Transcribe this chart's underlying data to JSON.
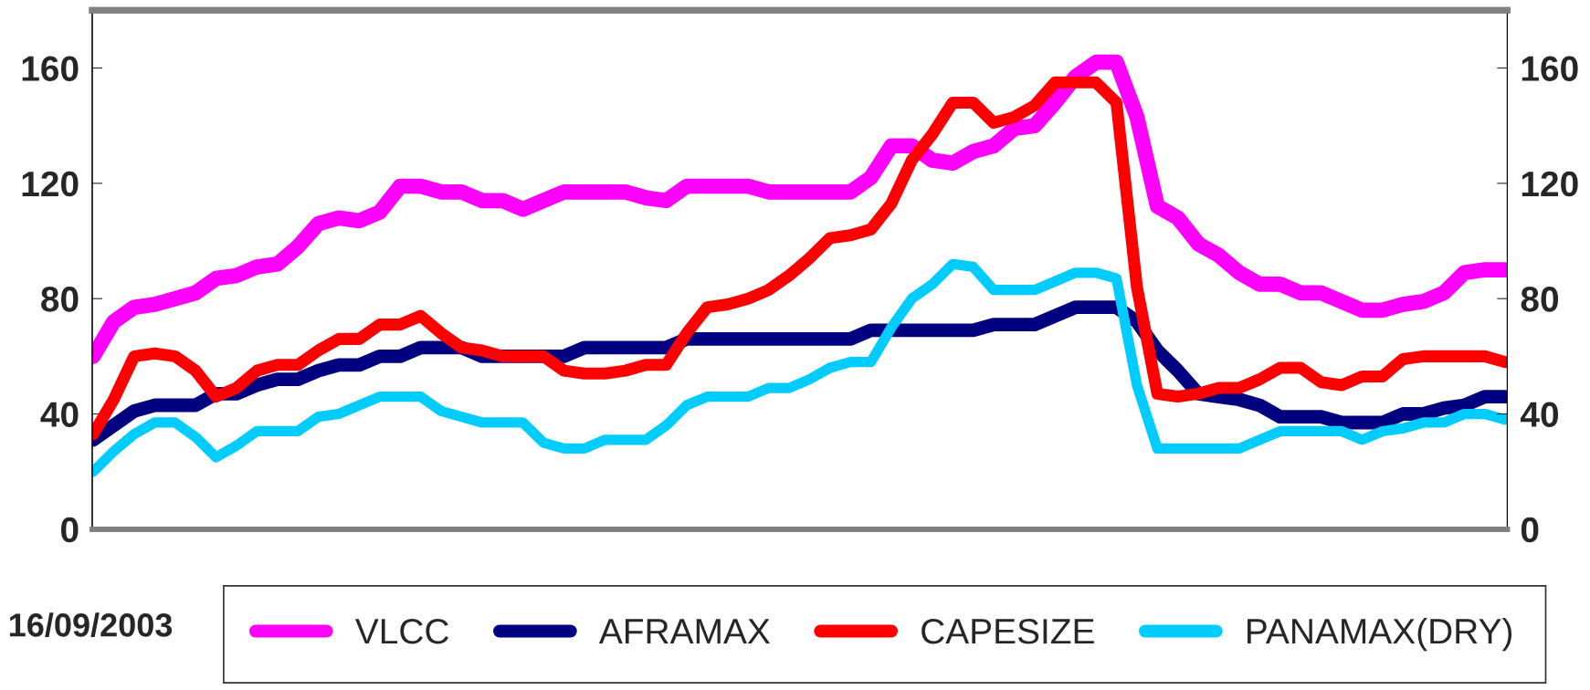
{
  "chart_data": {
    "type": "line",
    "categories": [
      null,
      null,
      null,
      null,
      null,
      null,
      null,
      null,
      null,
      null,
      null,
      null,
      null,
      null,
      null,
      null,
      null,
      null,
      null,
      null,
      null,
      null,
      null,
      null,
      null,
      null,
      null,
      null,
      null,
      null,
      null,
      null,
      null,
      null,
      null,
      null,
      null,
      null,
      null,
      null,
      null,
      null,
      null,
      null,
      null,
      null,
      null,
      null,
      null,
      null,
      null,
      null,
      null,
      null,
      null,
      null,
      null,
      null,
      null,
      null,
      null,
      null,
      null,
      null,
      null,
      null,
      null,
      null,
      null,
      null
    ],
    "ylim": [
      0,
      180
    ],
    "yticks": [
      0,
      40,
      80,
      120,
      160
    ],
    "y2lim": [
      0,
      180
    ],
    "y2ticks": [
      0,
      40,
      80,
      120,
      160
    ],
    "tick_labels": "y",
    "legend": "bottom",
    "line_style": "solid",
    "annotations": [
      "16/09/2003"
    ],
    "series": [
      {
        "name": "VLCC",
        "color": "#ff00ff",
        "values": [
          60,
          72,
          77,
          78,
          80,
          82,
          87,
          88,
          91,
          92,
          98,
          106,
          108,
          107,
          110,
          119,
          119,
          117,
          117,
          114,
          114,
          111,
          114,
          117,
          117,
          117,
          117,
          115,
          114,
          119,
          119,
          119,
          119,
          117,
          117,
          117,
          117,
          117,
          122,
          133,
          133,
          128,
          127,
          131,
          133,
          139,
          140,
          148,
          157,
          162,
          162,
          143,
          112,
          108,
          99,
          95,
          89,
          85,
          85,
          82,
          82,
          79,
          76,
          76,
          78,
          79,
          82,
          89,
          90,
          90
        ]
      },
      {
        "name": "AFRAMAX",
        "color": "#000080",
        "values": [
          31,
          36,
          41,
          43,
          43,
          43,
          47,
          47,
          50,
          52,
          52,
          55,
          57,
          57,
          60,
          60,
          63,
          63,
          63,
          60,
          60,
          60,
          60,
          60,
          63,
          63,
          63,
          63,
          63,
          66,
          66,
          66,
          66,
          66,
          66,
          66,
          66,
          66,
          69,
          69,
          69,
          69,
          69,
          69,
          71,
          71,
          71,
          74,
          77,
          77,
          77,
          72,
          62,
          55,
          47,
          46,
          45,
          43,
          39,
          39,
          39,
          37,
          37,
          37,
          40,
          40,
          42,
          43,
          46,
          46
        ]
      },
      {
        "name": "CAPESIZE",
        "color": "#ff0000",
        "values": [
          33,
          45,
          60,
          61,
          60,
          55,
          46,
          49,
          55,
          57,
          57,
          62,
          66,
          66,
          71,
          71,
          74,
          68,
          63,
          62,
          60,
          60,
          60,
          55,
          54,
          54,
          55,
          57,
          57,
          68,
          77,
          78,
          80,
          83,
          88,
          94,
          101,
          102,
          104,
          113,
          128,
          137,
          148,
          148,
          141,
          143,
          147,
          155,
          155,
          155,
          148,
          84,
          47,
          46,
          47,
          49,
          49,
          52,
          56,
          56,
          51,
          50,
          53,
          53,
          59,
          60,
          60,
          60,
          60,
          58
        ]
      },
      {
        "name": "PANAMAX(DRY)",
        "color": "#00ccff",
        "values": [
          20,
          27,
          33,
          37,
          37,
          32,
          25,
          29,
          34,
          34,
          34,
          39,
          40,
          43,
          46,
          46,
          46,
          41,
          39,
          37,
          37,
          37,
          30,
          28,
          28,
          31,
          31,
          31,
          36,
          43,
          46,
          46,
          46,
          49,
          49,
          52,
          56,
          58,
          58,
          70,
          80,
          85,
          92,
          91,
          83,
          83,
          83,
          86,
          89,
          89,
          87,
          50,
          28,
          28,
          28,
          28,
          28,
          31,
          34,
          34,
          34,
          34,
          31,
          34,
          35,
          37,
          37,
          40,
          40,
          38
        ]
      }
    ]
  }
}
